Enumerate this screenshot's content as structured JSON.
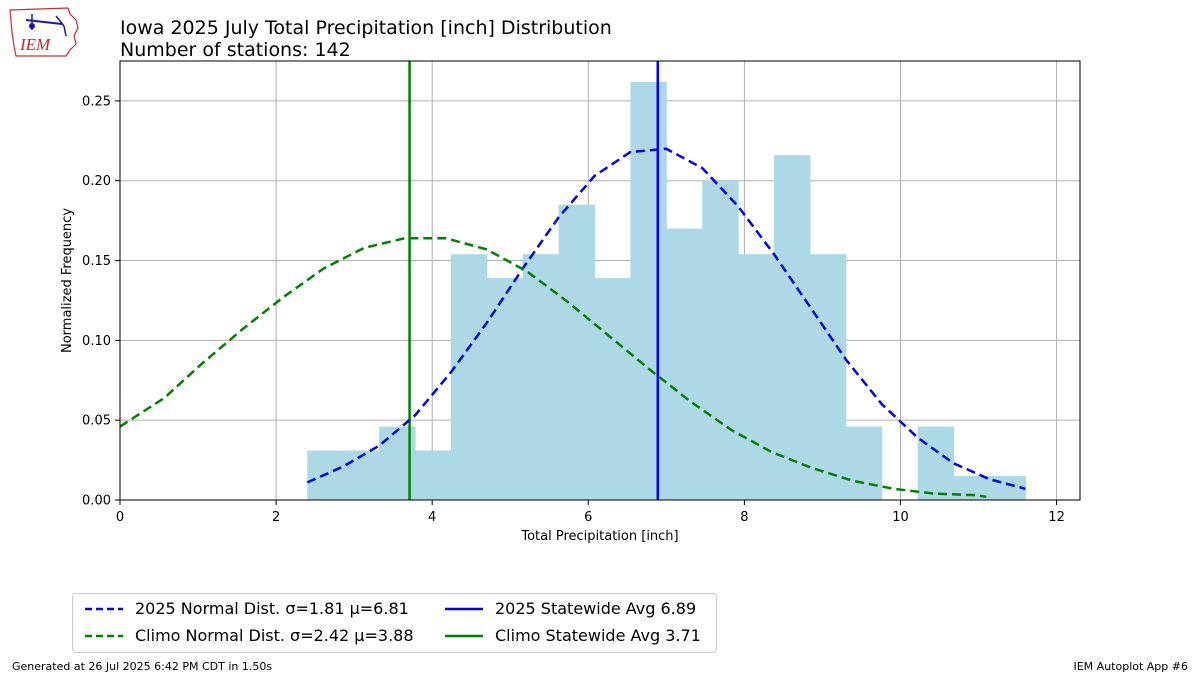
{
  "header": {
    "title_line1": "Iowa 2025 July Total Precipitation [inch] Distribution",
    "title_line2": "Number of stations: 142"
  },
  "logo": {
    "text": "IEM"
  },
  "footer": {
    "left": "Generated at 26 Jul 2025 6:42 PM CDT in 1.50s",
    "right": "IEM Autoplot App #6"
  },
  "colors": {
    "hist": "#add8e6",
    "blue": "#0000ff",
    "green": "#008000",
    "grid": "#b0b0b0"
  },
  "chart_data": {
    "type": "bar",
    "title": "Iowa 2025 July Total Precipitation [inch] Distribution",
    "subtitle": "Number of stations: 142",
    "xlabel": "Total Precipitation [inch]",
    "ylabel": "Normalized Frequency",
    "xlim": [
      0,
      12.3
    ],
    "ylim": [
      0,
      0.275
    ],
    "xticks": [
      0,
      2,
      4,
      6,
      8,
      10,
      12
    ],
    "yticks": [
      0.0,
      0.05,
      0.1,
      0.15,
      0.2,
      0.25
    ],
    "xtick_labels": [
      "0",
      "2",
      "4",
      "6",
      "8",
      "10",
      "12"
    ],
    "ytick_labels": [
      "0.00",
      "0.05",
      "0.10",
      "0.15",
      "0.20",
      "0.25"
    ],
    "grid": true,
    "legend_position": "below-left",
    "histogram": {
      "bin_edges": [
        2.4,
        2.86,
        3.32,
        3.78,
        4.24,
        4.7,
        5.16,
        5.62,
        6.08,
        6.54,
        7.0,
        7.46,
        7.92,
        8.38,
        8.84,
        9.3,
        9.76,
        10.22,
        10.68,
        11.14,
        11.6
      ],
      "values": [
        0.031,
        0.031,
        0.046,
        0.031,
        0.154,
        0.139,
        0.154,
        0.185,
        0.139,
        0.262,
        0.17,
        0.2,
        0.154,
        0.216,
        0.154,
        0.046,
        0.0,
        0.046,
        0.015,
        0.015
      ]
    },
    "series": [
      {
        "name": "2025 Normal Dist. σ=1.81 μ=6.81",
        "style": "dashed",
        "color": "#0000ff",
        "x": [
          2.4,
          2.86,
          3.32,
          3.78,
          4.24,
          4.7,
          5.16,
          5.62,
          6.08,
          6.54,
          7.0,
          7.46,
          7.92,
          8.38,
          8.84,
          9.3,
          9.76,
          10.22,
          10.68,
          11.14,
          11.6
        ],
        "y": [
          0.011,
          0.021,
          0.034,
          0.053,
          0.08,
          0.111,
          0.145,
          0.177,
          0.203,
          0.218,
          0.22,
          0.208,
          0.184,
          0.154,
          0.121,
          0.088,
          0.06,
          0.039,
          0.023,
          0.013,
          0.007
        ]
      },
      {
        "name": "Climo Normal Dist. σ=2.42 μ=3.88",
        "style": "dashed",
        "color": "#008000",
        "x": [
          0.0,
          0.57,
          1.04,
          1.57,
          2.09,
          2.61,
          3.13,
          3.65,
          4.17,
          4.7,
          5.22,
          5.74,
          6.26,
          6.78,
          7.3,
          7.83,
          8.35,
          8.87,
          9.39,
          9.91,
          10.43,
          10.96,
          11.1
        ],
        "y": [
          0.046,
          0.064,
          0.085,
          0.107,
          0.127,
          0.145,
          0.158,
          0.164,
          0.164,
          0.157,
          0.143,
          0.124,
          0.103,
          0.082,
          0.062,
          0.044,
          0.03,
          0.02,
          0.012,
          0.007,
          0.004,
          0.003,
          0.002
        ]
      }
    ],
    "vlines": [
      {
        "name": "2025 Statewide Avg 6.89",
        "x": 6.89,
        "color": "#0000ff"
      },
      {
        "name": "Climo Statewide Avg 3.71",
        "x": 3.71,
        "color": "#008000"
      }
    ]
  }
}
